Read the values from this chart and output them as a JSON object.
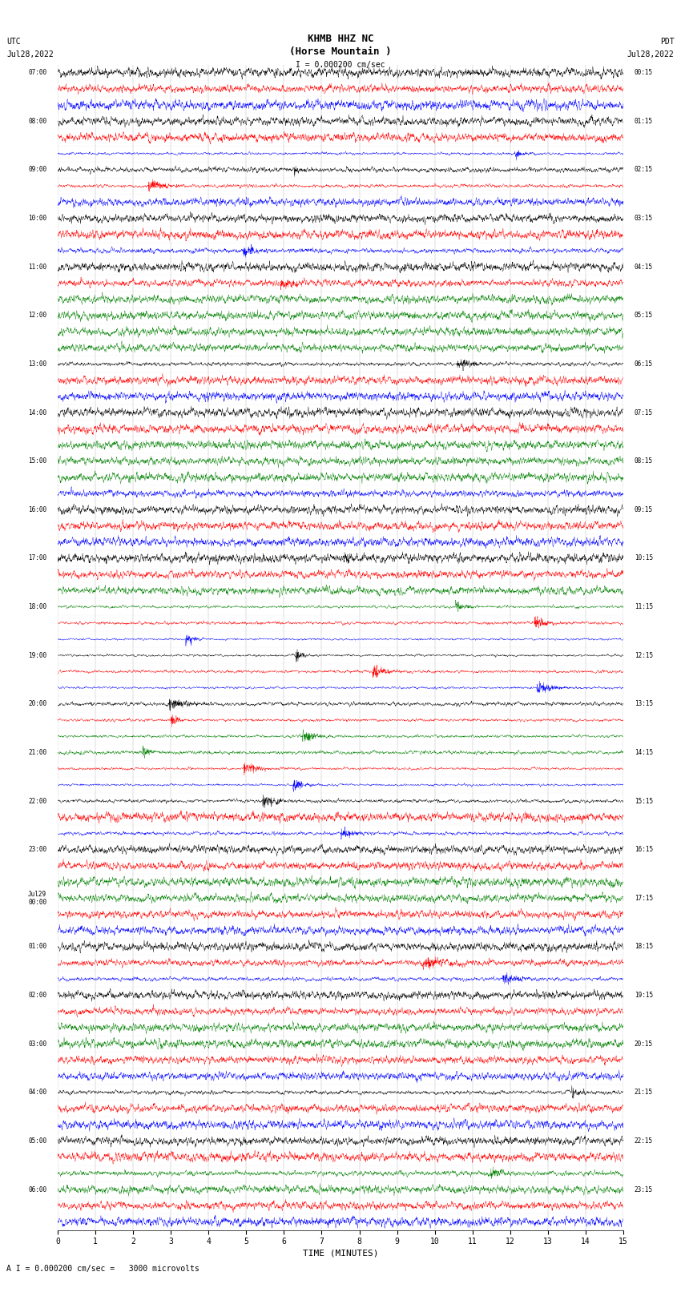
{
  "title_line1": "KHMB HHZ NC",
  "title_line2": "(Horse Mountain )",
  "scale_label": "I = 0.000200 cm/sec",
  "footer_label": "A I = 0.000200 cm/sec =   3000 microvolts",
  "xlabel": "TIME (MINUTES)",
  "left_times": [
    "07:00",
    "",
    "",
    "08:00",
    "",
    "",
    "09:00",
    "",
    "",
    "10:00",
    "",
    "",
    "11:00",
    "",
    "",
    "12:00",
    "",
    "",
    "13:00",
    "",
    "",
    "14:00",
    "",
    "",
    "15:00",
    "",
    "",
    "16:00",
    "",
    "",
    "17:00",
    "",
    "",
    "18:00",
    "",
    "",
    "19:00",
    "",
    "",
    "20:00",
    "",
    "",
    "21:00",
    "",
    "",
    "22:00",
    "",
    "",
    "23:00",
    "",
    "",
    "Jul29\n00:00",
    "",
    "",
    "01:00",
    "",
    "",
    "02:00",
    "",
    "",
    "03:00",
    "",
    "",
    "04:00",
    "",
    "",
    "05:00",
    "",
    "",
    "06:00",
    "",
    ""
  ],
  "right_times": [
    "00:15",
    "",
    "",
    "01:15",
    "",
    "",
    "02:15",
    "",
    "",
    "03:15",
    "",
    "",
    "04:15",
    "",
    "",
    "05:15",
    "",
    "",
    "06:15",
    "",
    "",
    "07:15",
    "",
    "",
    "08:15",
    "",
    "",
    "09:15",
    "",
    "",
    "10:15",
    "",
    "",
    "11:15",
    "",
    "",
    "12:15",
    "",
    "",
    "13:15",
    "",
    "",
    "14:15",
    "",
    "",
    "15:15",
    "",
    "",
    "16:15",
    "",
    "",
    "17:15",
    "",
    "",
    "18:15",
    "",
    "",
    "19:15",
    "",
    "",
    "20:15",
    "",
    "",
    "21:15",
    "",
    "",
    "22:15",
    "",
    "",
    "23:15",
    "",
    ""
  ],
  "n_rows": 72,
  "n_points": 3000,
  "fig_width": 8.5,
  "fig_height": 16.13,
  "bg_color": "white",
  "trace_linewidth": 0.28,
  "xmin": 0,
  "xmax": 15
}
